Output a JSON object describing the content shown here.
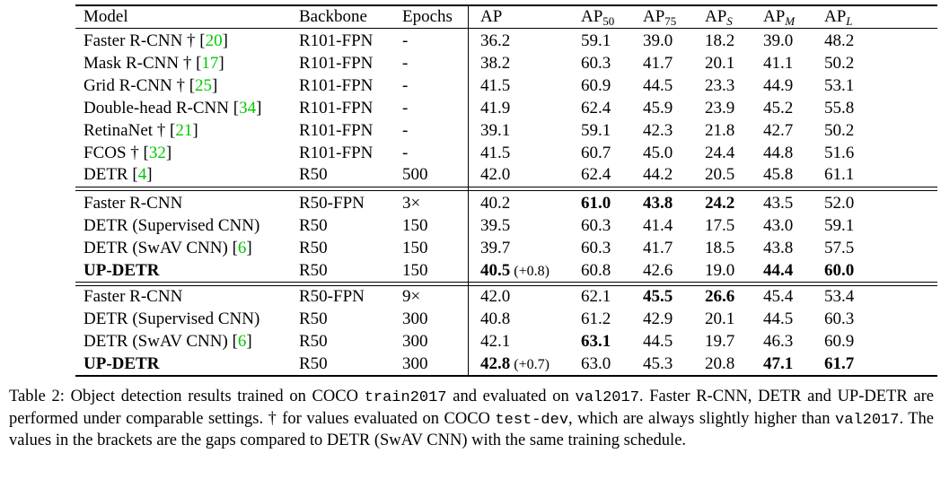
{
  "table": {
    "header": [
      "Model",
      "Backbone",
      "Epochs",
      "AP",
      [
        {
          "text": "AP"
        },
        {
          "text": "50",
          "sub": true
        }
      ],
      [
        {
          "text": "AP"
        },
        {
          "text": "75",
          "sub": true
        }
      ],
      [
        {
          "text": "AP"
        },
        {
          "text": "S",
          "sub": true,
          "italic": true
        }
      ],
      [
        {
          "text": "AP"
        },
        {
          "text": "M",
          "sub": true,
          "italic": true
        }
      ],
      [
        {
          "text": "AP"
        },
        {
          "text": "L",
          "sub": true,
          "italic": true
        }
      ]
    ],
    "groups": [
      {
        "rows": [
          [
            [
              {
                "text": "Faster R-CNN † ["
              },
              {
                "text": "20",
                "link": true
              },
              {
                "text": "]"
              }
            ],
            "R101-FPN",
            "-",
            "36.2",
            "59.1",
            "39.0",
            "18.2",
            "39.0",
            "48.2"
          ],
          [
            [
              {
                "text": "Mask R-CNN † ["
              },
              {
                "text": "17",
                "link": true
              },
              {
                "text": "]"
              }
            ],
            "R101-FPN",
            "-",
            "38.2",
            "60.3",
            "41.7",
            "20.1",
            "41.1",
            "50.2"
          ],
          [
            [
              {
                "text": "Grid R-CNN † ["
              },
              {
                "text": "25",
                "link": true
              },
              {
                "text": "]"
              }
            ],
            "R101-FPN",
            "-",
            "41.5",
            "60.9",
            "44.5",
            "23.3",
            "44.9",
            "53.1"
          ],
          [
            [
              {
                "text": "Double-head R-CNN ["
              },
              {
                "text": "34",
                "link": true
              },
              {
                "text": "]"
              }
            ],
            "R101-FPN",
            "-",
            "41.9",
            "62.4",
            "45.9",
            "23.9",
            "45.2",
            "55.8"
          ],
          [
            [
              {
                "text": "RetinaNet † ["
              },
              {
                "text": "21",
                "link": true
              },
              {
                "text": "]"
              }
            ],
            "R101-FPN",
            "-",
            "39.1",
            "59.1",
            "42.3",
            "21.8",
            "42.7",
            "50.2"
          ],
          [
            [
              {
                "text": "FCOS † ["
              },
              {
                "text": "32",
                "link": true
              },
              {
                "text": "]"
              }
            ],
            "R101-FPN",
            "-",
            "41.5",
            "60.7",
            "45.0",
            "24.4",
            "44.8",
            "51.6"
          ],
          [
            [
              {
                "text": "DETR ["
              },
              {
                "text": "4",
                "link": true
              },
              {
                "text": "]"
              }
            ],
            "R50",
            "500",
            "42.0",
            "62.4",
            "44.2",
            "20.5",
            "45.8",
            "61.1"
          ]
        ]
      },
      {
        "rows": [
          [
            "Faster R-CNN",
            "R50-FPN",
            "3×",
            "40.2",
            [
              {
                "text": "61.0",
                "bold": true
              }
            ],
            [
              {
                "text": "43.8",
                "bold": true
              }
            ],
            [
              {
                "text": "24.2",
                "bold": true
              }
            ],
            "43.5",
            "52.0"
          ],
          [
            "DETR (Supervised CNN)",
            "R50",
            "150",
            "39.5",
            "60.3",
            "41.4",
            "17.5",
            "43.0",
            "59.1"
          ],
          [
            [
              {
                "text": "DETR (SwAV CNN) ["
              },
              {
                "text": "6",
                "link": true
              },
              {
                "text": "]"
              }
            ],
            "R50",
            "150",
            "39.7",
            "60.3",
            "41.7",
            "18.5",
            "43.8",
            "57.5"
          ],
          [
            [
              {
                "text": "UP-DETR",
                "bold": true
              }
            ],
            "R50",
            "150",
            [
              {
                "text": "40.5",
                "bold": true
              },
              {
                "text": " (+0.8)",
                "small": true
              }
            ],
            "60.8",
            "42.6",
            "19.0",
            [
              {
                "text": "44.4",
                "bold": true
              }
            ],
            [
              {
                "text": "60.0",
                "bold": true
              }
            ]
          ]
        ]
      },
      {
        "rows": [
          [
            "Faster R-CNN",
            "R50-FPN",
            "9×",
            "42.0",
            "62.1",
            [
              {
                "text": "45.5",
                "bold": true
              }
            ],
            [
              {
                "text": "26.6",
                "bold": true
              }
            ],
            "45.4",
            "53.4"
          ],
          [
            "DETR (Supervised CNN)",
            "R50",
            "300",
            "40.8",
            "61.2",
            "42.9",
            "20.1",
            "44.5",
            "60.3"
          ],
          [
            [
              {
                "text": "DETR (SwAV CNN) ["
              },
              {
                "text": "6",
                "link": true
              },
              {
                "text": "]"
              }
            ],
            "R50",
            "300",
            "42.1",
            [
              {
                "text": "63.1",
                "bold": true
              }
            ],
            "44.5",
            "19.7",
            "46.3",
            "60.9"
          ],
          [
            [
              {
                "text": "UP-DETR",
                "bold": true
              }
            ],
            "R50",
            "300",
            [
              {
                "text": "42.8",
                "bold": true
              },
              {
                "text": " (+0.7)",
                "small": true
              }
            ],
            "63.0",
            "45.3",
            "20.8",
            [
              {
                "text": "47.1",
                "bold": true
              }
            ],
            [
              {
                "text": "61.7",
                "bold": true
              }
            ]
          ]
        ]
      }
    ]
  },
  "caption": [
    {
      "text": "Table 2: Object detection results trained on COCO "
    },
    {
      "text": "train2017",
      "mono": true
    },
    {
      "text": " and evaluated on "
    },
    {
      "text": "val2017",
      "mono": true
    },
    {
      "text": ". Faster R-CNN, DETR and UP-DETR are performed under comparable settings. † for values evaluated on COCO "
    },
    {
      "text": "test-dev",
      "mono": true
    },
    {
      "text": ", which are always slightly higher than "
    },
    {
      "text": "val2017",
      "mono": true
    },
    {
      "text": ". The values in the brackets are the gaps compared to DETR (SwAV CNN) with the same training schedule."
    }
  ]
}
